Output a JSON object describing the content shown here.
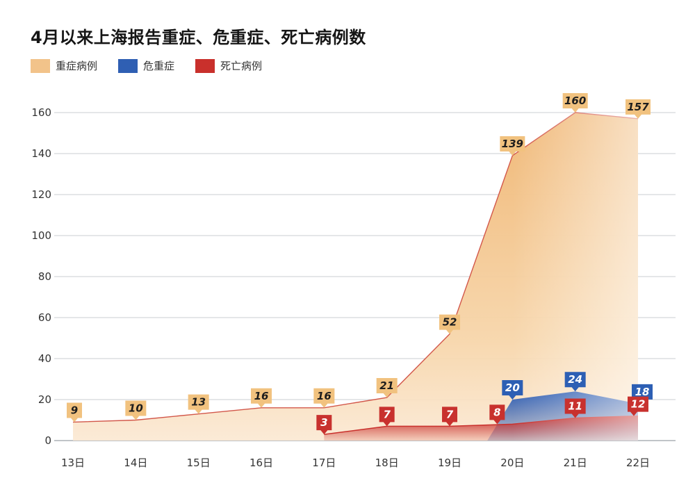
{
  "chart_data": {
    "type": "area",
    "title": "4月以来上海报告重症、危重症、死亡病例数",
    "xlabel": "",
    "ylabel": "",
    "categories": [
      "13日",
      "14日",
      "15日",
      "16日",
      "17日",
      "18日",
      "19日",
      "20日",
      "21日",
      "22日"
    ],
    "ylim": [
      0,
      160
    ],
    "yticks": [
      0,
      20,
      40,
      60,
      80,
      100,
      120,
      140,
      160
    ],
    "grid": true,
    "legend_position": "top-left",
    "series": [
      {
        "name": "重症病例",
        "color": "#f2c38a",
        "values": [
          9,
          10,
          13,
          16,
          16,
          21,
          52,
          139,
          160,
          157
        ]
      },
      {
        "name": "危重症",
        "color": "#2f5fb3",
        "values": [
          null,
          null,
          null,
          null,
          null,
          null,
          null,
          20,
          24,
          18
        ]
      },
      {
        "name": "死亡病例",
        "color": "#c9302c",
        "values": [
          null,
          null,
          null,
          null,
          3,
          7,
          7,
          8,
          11,
          12
        ]
      }
    ]
  }
}
